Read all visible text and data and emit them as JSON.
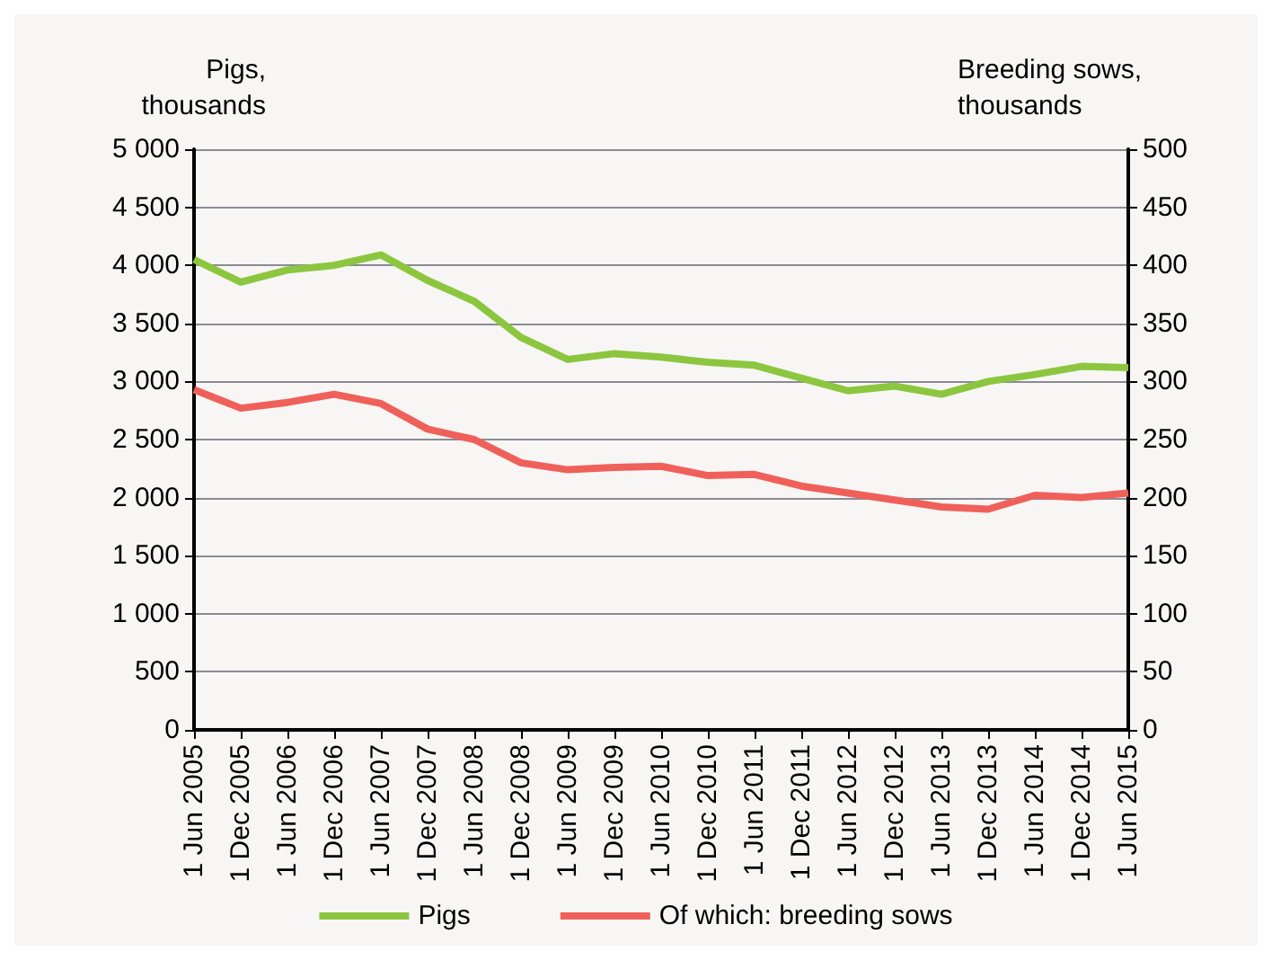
{
  "chart_data": {
    "type": "line",
    "ylabel": "Pigs,\nthousands",
    "y2label": "Breeding sows,\nthousands",
    "categories": [
      "1 Jun 2005",
      "1 Dec 2005",
      "1 Jun 2006",
      "1 Dec 2006",
      "1 Jun 2007",
      "1 Dec 2007",
      "1 Jun 2008",
      "1 Dec 2008",
      "1 Jun 2009",
      "1 Dec 2009",
      "1 Jun 2010",
      "1 Dec 2010",
      "1 Jun 2011",
      "1 Dec 2011",
      "1 Jun 2012",
      "1 Dec 2012",
      "1 Jun 2013",
      "1 Dec 2013",
      "1 Jun 2014",
      "1 Dec 2014",
      "1 Jun 2015"
    ],
    "series": [
      {
        "name": "Pigs",
        "color": "#8cc63f",
        "values": [
          4050,
          3855,
          3960,
          4000,
          4090,
          3870,
          3690,
          3380,
          3190,
          3240,
          3210,
          3165,
          3140,
          3030,
          2920,
          2960,
          2890,
          3000,
          3060,
          3130,
          3120
        ]
      },
      {
        "name": "Of which: breeding sows",
        "color": "#f0605a",
        "axis": "y2",
        "values": [
          293,
          277,
          282,
          289,
          281,
          259,
          250,
          230,
          224,
          226,
          227,
          219,
          220,
          210,
          204,
          198,
          192,
          190,
          202,
          200,
          204
        ]
      }
    ],
    "ylim": [
      0,
      5000
    ],
    "yticks": [
      {
        "value": 0,
        "label": "0"
      },
      {
        "value": 500,
        "label": "500"
      },
      {
        "value": 1000,
        "label": "1 000"
      },
      {
        "value": 1500,
        "label": "1 500"
      },
      {
        "value": 2000,
        "label": "2 000"
      },
      {
        "value": 2500,
        "label": "2 500"
      },
      {
        "value": 3000,
        "label": "3 000"
      },
      {
        "value": 3500,
        "label": "3 500"
      },
      {
        "value": 4000,
        "label": "4 000"
      },
      {
        "value": 4500,
        "label": "4 500"
      },
      {
        "value": 5000,
        "label": "5 000"
      }
    ],
    "y2lim": [
      0,
      500
    ],
    "y2ticks": [
      0,
      50,
      100,
      150,
      200,
      250,
      300,
      350,
      400,
      450,
      500
    ],
    "grid": "y",
    "legend": "bottom",
    "marker": "none",
    "line_style": "solid"
  }
}
